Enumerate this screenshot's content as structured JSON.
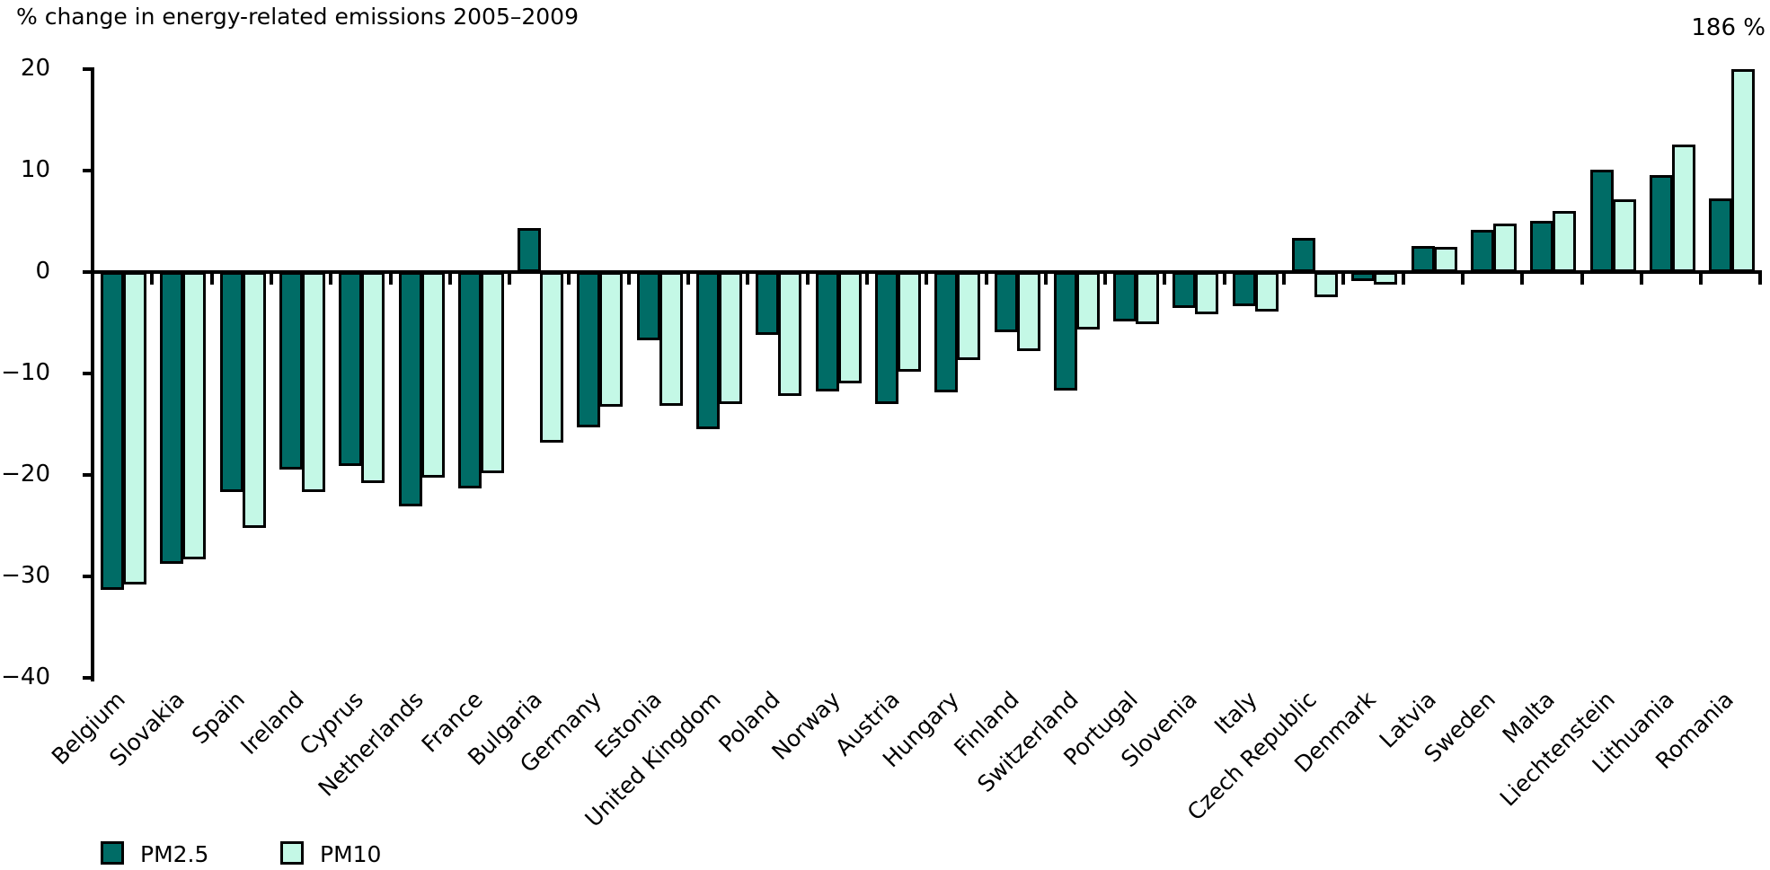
{
  "chart_data": {
    "type": "bar",
    "title": "% change in energy-related emissions 2005–2009",
    "xlabel": "",
    "ylabel": "",
    "ylim": [
      -40,
      20
    ],
    "yticks": [
      20,
      10,
      0,
      -10,
      -20,
      -30,
      -40
    ],
    "grid": false,
    "legend_position": "bottom-left",
    "categories": [
      "Belgium",
      "Slovakia",
      "Spain",
      "Ireland",
      "Cyprus",
      "Netherlands",
      "France",
      "Bulgaria",
      "Germany",
      "Estonia",
      "United Kingdom",
      "Poland",
      "Norway",
      "Austria",
      "Hungary",
      "Finland",
      "Switzerland",
      "Portugal",
      "Slovenia",
      "Italy",
      "Czech Republic",
      "Denmark",
      "Latvia",
      "Sweden",
      "Malta",
      "Liechtenstein",
      "Lithuania",
      "Romania"
    ],
    "series": [
      {
        "name": "PM2.5",
        "color": "#006C66",
        "values": [
          -31.3,
          -28.8,
          -21.7,
          -19.5,
          -19.1,
          -23.1,
          -21.3,
          4.3,
          -15.3,
          -6.7,
          -15.5,
          -6.2,
          -11.8,
          -13.0,
          -11.9,
          -5.9,
          -11.7,
          -4.9,
          -3.5,
          -3.4,
          3.4,
          -0.9,
          2.6,
          4.2,
          5.0,
          10.1,
          9.6,
          7.3
        ]
      },
      {
        "name": "PM10",
        "color": "#C4F8E6",
        "values": [
          -30.8,
          -28.3,
          -25.2,
          -21.7,
          -20.8,
          -20.3,
          -19.8,
          -16.8,
          -13.3,
          -13.2,
          -13.0,
          -12.2,
          -11.0,
          -9.8,
          -8.7,
          -7.8,
          -5.7,
          -5.1,
          -4.2,
          -3.9,
          -2.5,
          -1.2,
          2.5,
          4.8,
          6.0,
          7.2,
          12.6,
          186
        ]
      }
    ],
    "clip_annotation": {
      "series": "PM10",
      "category": "Romania",
      "text": "186 %",
      "actual_value": 186,
      "clipped_at": 20
    },
    "axis_color": "#000000",
    "bar_border_color": "#000000"
  }
}
